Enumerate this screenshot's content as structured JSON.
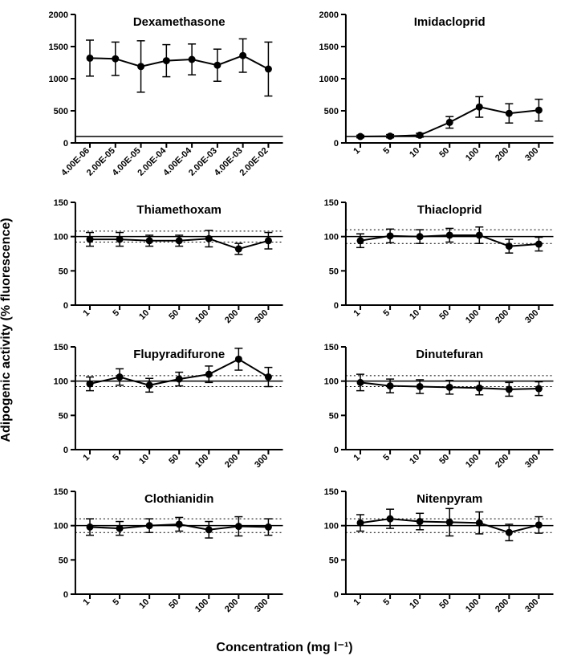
{
  "global": {
    "ylabel": "Adipogenic activity (% fluorescence)",
    "xlabel": "Concentration (mg l⁻¹)",
    "axis_color": "#000000",
    "line_color": "#000000",
    "marker_color": "#000000",
    "ref_line_color": "#000000",
    "dotted_line_color": "#000000",
    "title_fontsize": 15,
    "title_fontweight": "bold",
    "tick_fontsize": 11,
    "tick_fontweight": "bold",
    "label_fontsize": 16,
    "marker_radius": 4.5,
    "line_width": 2,
    "errbar_width": 1.5,
    "errbar_cap": 5,
    "axis_width": 2,
    "tick_len": 6
  },
  "panels": [
    {
      "title": "Dexamethasone",
      "ylim": [
        0,
        2000
      ],
      "ytick_step": 500,
      "xcats": [
        "4.00E-06",
        "2.00E-05",
        "4.00E-05",
        "2.00E-04",
        "4.00E-04",
        "2.00E-03",
        "4.00E-03",
        "2.00E-02"
      ],
      "values": [
        1320,
        1310,
        1190,
        1280,
        1300,
        1210,
        1360,
        1150
      ],
      "err": [
        280,
        260,
        400,
        250,
        240,
        250,
        260,
        420
      ],
      "ref_solid": 100,
      "ref_dotted": null,
      "big": true
    },
    {
      "title": "Imidacloprid",
      "ylim": [
        0,
        2000
      ],
      "ytick_step": 500,
      "xcats": [
        "1",
        "5",
        "10",
        "50",
        "100",
        "200",
        "300"
      ],
      "values": [
        100,
        105,
        120,
        320,
        560,
        460,
        510
      ],
      "err": [
        20,
        25,
        30,
        90,
        160,
        150,
        170
      ],
      "ref_solid": 100,
      "ref_dotted": null,
      "big": true
    },
    {
      "title": "Thiamethoxam",
      "ylim": [
        0,
        150
      ],
      "ytick_step": 50,
      "xcats": [
        "1",
        "5",
        "10",
        "50",
        "100",
        "200",
        "300"
      ],
      "values": [
        96,
        96,
        94,
        94,
        97,
        82,
        94
      ],
      "err": [
        10,
        10,
        8,
        8,
        12,
        8,
        12
      ],
      "ref_solid": 100,
      "ref_dotted": [
        92,
        108
      ],
      "big": false
    },
    {
      "title": "Thiacloprid",
      "ylim": [
        0,
        150
      ],
      "ytick_step": 50,
      "xcats": [
        "1",
        "5",
        "10",
        "50",
        "100",
        "200",
        "300"
      ],
      "values": [
        94,
        101,
        100,
        102,
        102,
        86,
        89
      ],
      "err": [
        10,
        10,
        10,
        10,
        12,
        10,
        10
      ],
      "ref_solid": 100,
      "ref_dotted": [
        90,
        110
      ],
      "big": false
    },
    {
      "title": "Flupyradifurone",
      "ylim": [
        0,
        150
      ],
      "ytick_step": 50,
      "xcats": [
        "1",
        "5",
        "10",
        "50",
        "100",
        "200",
        "300"
      ],
      "values": [
        96,
        106,
        94,
        103,
        110,
        132,
        106
      ],
      "err": [
        10,
        12,
        10,
        10,
        12,
        16,
        14
      ],
      "ref_solid": 100,
      "ref_dotted": [
        92,
        108
      ],
      "big": false
    },
    {
      "title": "Dinutefuran",
      "ylim": [
        0,
        150
      ],
      "ytick_step": 50,
      "xcats": [
        "1",
        "5",
        "10",
        "50",
        "100",
        "200",
        "300"
      ],
      "values": [
        98,
        93,
        92,
        91,
        90,
        88,
        89
      ],
      "err": [
        12,
        10,
        10,
        10,
        10,
        10,
        10
      ],
      "ref_solid": 100,
      "ref_dotted": [
        92,
        108
      ],
      "big": false
    },
    {
      "title": "Clothianidin",
      "ylim": [
        0,
        150
      ],
      "ytick_step": 50,
      "xcats": [
        "1",
        "5",
        "10",
        "50",
        "100",
        "200",
        "300"
      ],
      "values": [
        98,
        96,
        100,
        102,
        94,
        99,
        98
      ],
      "err": [
        12,
        10,
        10,
        10,
        12,
        14,
        12
      ],
      "ref_solid": 100,
      "ref_dotted": [
        90,
        110
      ],
      "big": false
    },
    {
      "title": "Nitenpyram",
      "ylim": [
        0,
        150
      ],
      "ytick_step": 50,
      "xcats": [
        "1",
        "5",
        "10",
        "50",
        "100",
        "200",
        "300"
      ],
      "values": [
        104,
        110,
        106,
        105,
        104,
        90,
        101
      ],
      "err": [
        12,
        14,
        12,
        20,
        16,
        12,
        12
      ],
      "ref_solid": 100,
      "ref_dotted": [
        90,
        110
      ],
      "big": false
    }
  ]
}
